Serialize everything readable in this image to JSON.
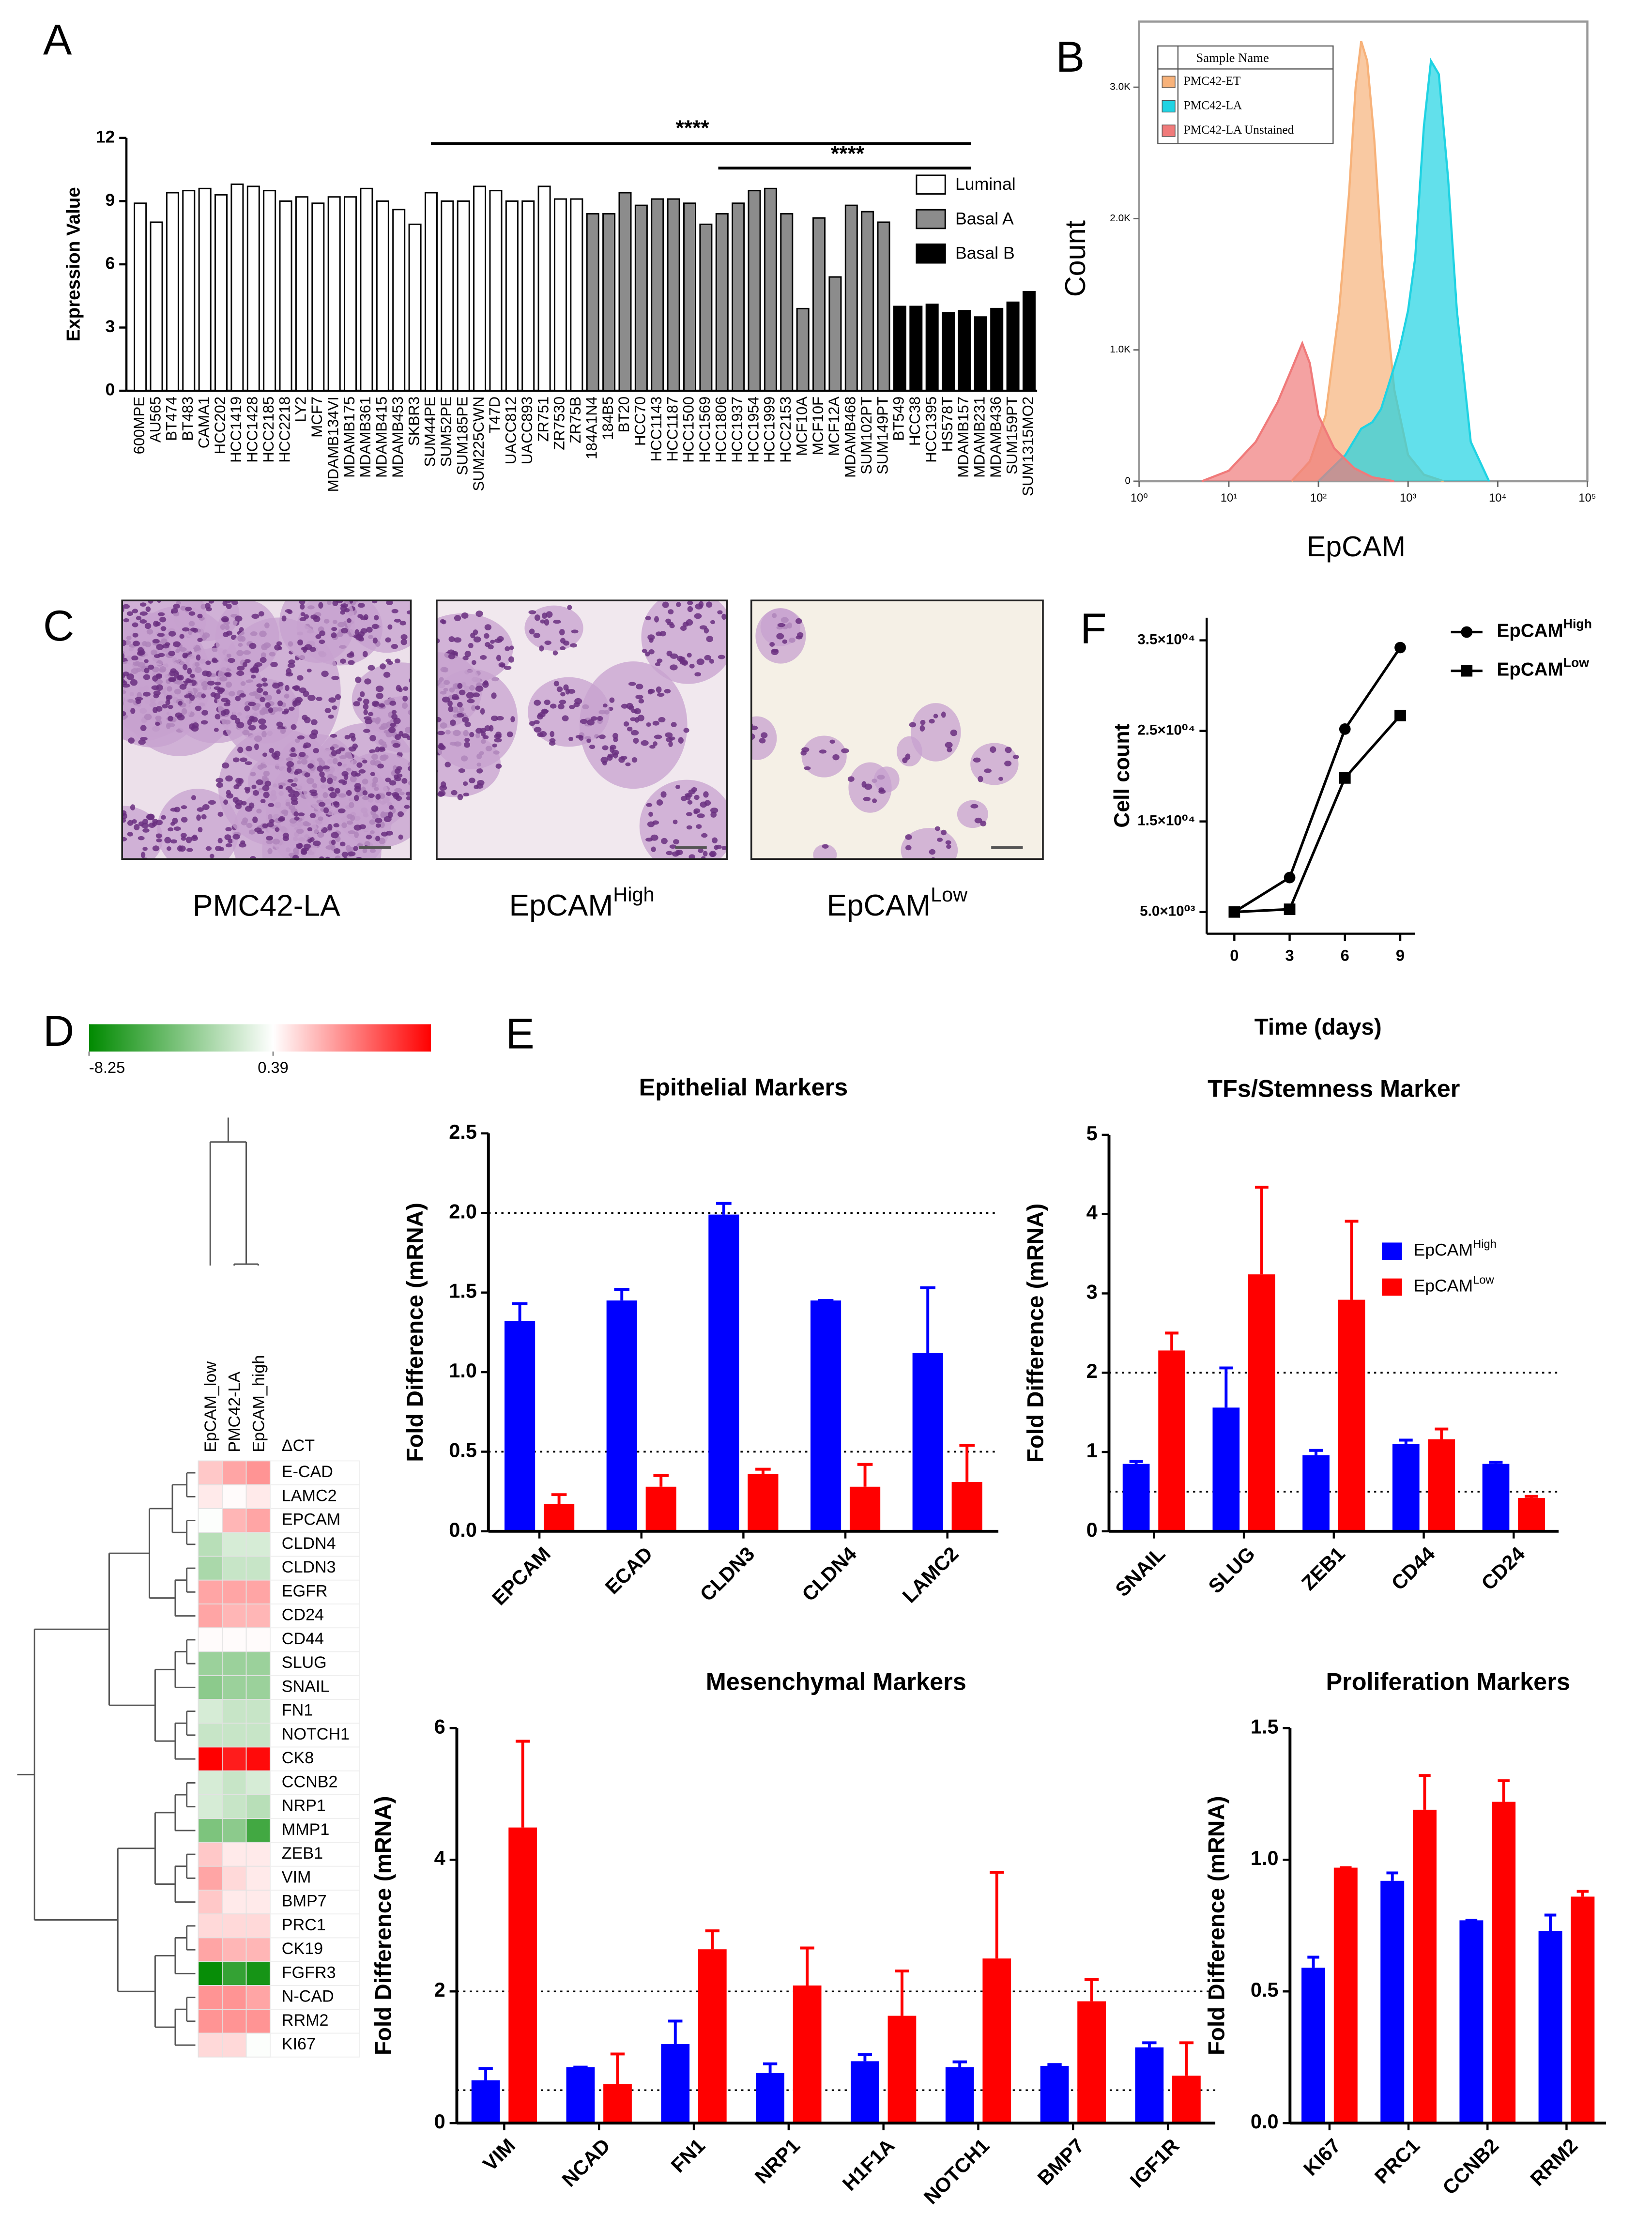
{
  "panels": [
    "A",
    "B",
    "C",
    "D",
    "E",
    "F"
  ],
  "images": {
    "captions": [
      {
        "text": "PMC42-LA"
      },
      {
        "text": "EpCAM",
        "sup": "High"
      },
      {
        "text": "EpCAM",
        "sup": "Low"
      }
    ]
  },
  "chart_data": [
    {
      "type": "bar",
      "ylabel": "Expression Value",
      "ylim": [
        0,
        12
      ],
      "yticks": [
        0,
        3,
        6,
        9,
        12
      ],
      "legend": "right",
      "annotations": [
        {
          "text": "****"
        },
        {
          "text": "****"
        }
      ],
      "series": [
        {
          "name": "Luminal",
          "color": "#ffffff",
          "categories": [
            "600MPE",
            "AU565",
            "BT474",
            "BT483",
            "CAMA1",
            "HCC202",
            "HCC1419",
            "HCC1428",
            "HCC2185",
            "HCC2218",
            "LY2",
            "MCF7",
            "MDAMB134VI",
            "MDAMB175",
            "MDAMB361",
            "MDAMB415",
            "MDAMB453",
            "SKBR3",
            "SUM44PE",
            "SUM52PE",
            "SUM185PE",
            "SUM225CWN",
            "T47D",
            "UACC812",
            "UACC893",
            "ZR751",
            "ZR7530",
            "ZR75B"
          ],
          "values": [
            8.9,
            8.0,
            9.4,
            9.5,
            9.6,
            9.3,
            9.8,
            9.7,
            9.5,
            9.0,
            9.2,
            8.9,
            9.2,
            9.2,
            9.6,
            9.0,
            8.6,
            7.9,
            9.4,
            9.0,
            9.0,
            9.7,
            9.5,
            9.0,
            9.0,
            9.7,
            9.1,
            9.1
          ]
        },
        {
          "name": "Basal A",
          "color": "#8c8c8c",
          "categories": [
            "184A1N4",
            "184B5",
            "BT20",
            "HCC70",
            "HCC1143",
            "HCC1187",
            "HCC1500",
            "HCC1569",
            "HCC1806",
            "HCC1937",
            "HCC1954",
            "HCC1999",
            "HCC2153",
            "MCF10A",
            "MCF10F",
            "MCF12A",
            "MDAMB468",
            "SUM102PT",
            "SUM149PT"
          ],
          "values": [
            8.4,
            8.4,
            9.4,
            8.8,
            9.1,
            9.1,
            8.9,
            7.9,
            8.4,
            8.9,
            9.5,
            9.6,
            8.4,
            3.9,
            8.2,
            5.4,
            8.8,
            8.5,
            8.0
          ]
        },
        {
          "name": "Basal B",
          "color": "#000000",
          "categories": [
            "BT549",
            "HCC38",
            "HCC1395",
            "HS578T",
            "MDAMB157",
            "MDAMB231",
            "MDAMB436",
            "SUM159PT",
            "SUM1315MO2"
          ],
          "values": [
            4.0,
            4.0,
            4.1,
            3.7,
            3.8,
            3.5,
            3.9,
            4.2,
            4.7
          ]
        }
      ]
    },
    {
      "type": "density",
      "xlabel": "EpCAM",
      "ylabel": "Count",
      "xscale": "log",
      "xlim": [
        1,
        100000
      ],
      "xticks": [
        {
          "value": 1,
          "label": "10⁰"
        },
        {
          "value": 10,
          "label": "10¹"
        },
        {
          "value": 100,
          "label": "10²"
        },
        {
          "value": 1000,
          "label": "10³"
        },
        {
          "value": 10000,
          "label": "10⁴"
        },
        {
          "value": 100000,
          "label": "10⁵"
        }
      ],
      "ylim": [
        0,
        3500
      ],
      "yticks": [
        0,
        {
          "value": 1000,
          "label": "1.0K"
        },
        {
          "value": 2000,
          "label": "2.0K"
        },
        {
          "value": 3000,
          "label": "3.0K"
        }
      ],
      "legend_title": "Sample Name",
      "series": [
        {
          "name": "PMC42-ET",
          "color": "#f7b27a",
          "x": [
            50,
            80,
            120,
            170,
            220,
            260,
            300,
            350,
            420,
            520,
            700,
            1000,
            1500,
            2500
          ],
          "values": [
            0,
            150,
            500,
            1300,
            2200,
            3000,
            3350,
            3200,
            2600,
            1600,
            700,
            200,
            50,
            0
          ]
        },
        {
          "name": "PMC42-LA",
          "color": "#1fd3e3",
          "x": [
            100,
            200,
            300,
            400,
            500,
            650,
            800,
            1000,
            1200,
            1500,
            1800,
            2200,
            2800,
            3500,
            5000,
            8000
          ],
          "values": [
            0,
            200,
            400,
            450,
            550,
            800,
            1000,
            1300,
            1700,
            2700,
            3200,
            3100,
            2300,
            1300,
            300,
            0
          ]
        },
        {
          "name": "PMC42-LA Unstained",
          "color": "#f07a7a",
          "x": [
            5,
            10,
            20,
            35,
            50,
            66,
            80,
            100,
            150,
            250,
            400,
            700
          ],
          "values": [
            0,
            80,
            300,
            600,
            850,
            1050,
            900,
            500,
            250,
            100,
            30,
            0
          ]
        }
      ]
    },
    {
      "type": "line",
      "xlabel": "Time (days)",
      "ylabel": "Cell count",
      "x": [
        0,
        3,
        6,
        9
      ],
      "xlim": [
        -1.5,
        9.8
      ],
      "xticks": [
        0,
        3,
        6,
        9
      ],
      "ylim": [
        2600,
        37500
      ],
      "yticks": [
        {
          "value": 5000,
          "label": "5.0×10⁰³"
        },
        {
          "value": 15000,
          "label": "1.5×10⁰⁴"
        },
        {
          "value": 25000,
          "label": "2.5×10⁰⁴"
        },
        {
          "value": 35000,
          "label": "3.5×10⁰⁴"
        }
      ],
      "legend": "right",
      "series": [
        {
          "name": "EpCAM",
          "name_sup": "High",
          "marker": "circle",
          "color": "#000000",
          "values": [
            5000,
            8800,
            25200,
            34200
          ]
        },
        {
          "name": "EpCAM",
          "name_sup": "Low",
          "marker": "square",
          "color": "#000000",
          "values": [
            5000,
            5300,
            19800,
            26700
          ]
        }
      ]
    },
    {
      "type": "heatmap",
      "zlim": [
        -8.25,
        7.8
      ],
      "zmid": 0.39,
      "colorbar_ticks": [
        -8.25,
        0.39
      ],
      "colors": [
        "#008a00",
        "#ffffff",
        "#ff0000"
      ],
      "column_header": "ΔCT",
      "columns": [
        "EpCAM_low",
        "PMC42-LA",
        "EpCAM_high"
      ],
      "rows": [
        "E-CAD",
        "LAMC2",
        "EPCAM",
        "CLDN4",
        "CLDN3",
        "EGFR",
        "CD24",
        "CD44",
        "SLUG",
        "SNAIL",
        "FN1",
        "NOTCH1",
        "CK8",
        "CCNB2",
        "NRP1",
        "MMP1",
        "ZEB1",
        "VIM",
        "BMP7",
        "PRC1",
        "CK19",
        "FGFR3",
        "N-CAD",
        "RRM2",
        "KI67"
      ],
      "values": [
        [
          2,
          3,
          3.5
        ],
        [
          1,
          0.5,
          1
        ],
        [
          0.3,
          2.5,
          3
        ],
        [
          -2,
          -1,
          -1
        ],
        [
          -2.5,
          -1.5,
          -1.5
        ],
        [
          3,
          3,
          3
        ],
        [
          3,
          2.5,
          2.5
        ],
        [
          0.5,
          0.5,
          0.5
        ],
        [
          -3,
          -3,
          -3
        ],
        [
          -3.5,
          -3,
          -3
        ],
        [
          -1,
          -1.5,
          -1.5
        ],
        [
          -1.5,
          -1.5,
          -1.5
        ],
        [
          7.8,
          7,
          7.5
        ],
        [
          -1,
          -1.5,
          -1
        ],
        [
          -1,
          -1.5,
          -2
        ],
        [
          -4,
          -3.5,
          -6
        ],
        [
          2,
          1,
          1
        ],
        [
          3,
          1.5,
          1
        ],
        [
          2,
          1,
          1
        ],
        [
          1.5,
          1.5,
          1.5
        ],
        [
          3,
          2.5,
          2.5
        ],
        [
          -8,
          -6.5,
          -7.5
        ],
        [
          3.5,
          3.5,
          3
        ],
        [
          3.5,
          3.5,
          3.5
        ],
        [
          1.5,
          1.5,
          0.3
        ]
      ]
    },
    {
      "type": "grouped_bar",
      "title": "Epithelial Markers",
      "ylabel": "Fold Difference (mRNA)",
      "categories": [
        "EPCAM",
        "ECAD",
        "CLDN3",
        "CLDN4",
        "LAMC2"
      ],
      "ylim": [
        0,
        2.5
      ],
      "yticks": [
        {
          "value": 0,
          "label": "0.0"
        },
        0.5,
        {
          "value": 1,
          "label": "1.0"
        },
        1.5,
        {
          "value": 2,
          "label": "2.0"
        },
        2.5
      ],
      "ref_lines": [
        0.5,
        2.0
      ],
      "series": [
        {
          "color": "#0000ff",
          "values": [
            1.32,
            1.45,
            1.99,
            1.45,
            1.12
          ],
          "errors": [
            0.11,
            0.07,
            0.07,
            0,
            0.41
          ]
        },
        {
          "color": "#ff0000",
          "values": [
            0.17,
            0.28,
            0.36,
            0.28,
            0.31
          ],
          "errors": [
            0.06,
            0.07,
            0.03,
            0.14,
            0.23
          ]
        }
      ]
    },
    {
      "type": "grouped_bar",
      "title": "TFs/Stemness Marker",
      "ylabel": "Fold Difference (mRNA)",
      "categories": [
        "SNAIL",
        "SLUG",
        "ZEB1",
        "CD44",
        "CD24"
      ],
      "ylim": [
        0,
        5
      ],
      "yticks": [
        0,
        1,
        2,
        3,
        4,
        5
      ],
      "ref_lines": [
        0.5,
        2
      ],
      "legend": "upper right",
      "series": [
        {
          "name": "EpCAM",
          "name_sup": "High",
          "color": "#0000ff",
          "values": [
            0.85,
            1.56,
            0.96,
            1.1,
            0.85
          ],
          "errors": [
            0.03,
            0.5,
            0.06,
            0.05,
            0.02
          ]
        },
        {
          "name": "EpCAM",
          "name_sup": "Low",
          "color": "#ff0000",
          "values": [
            2.28,
            3.24,
            2.92,
            1.16,
            0.42
          ],
          "errors": [
            0.22,
            1.1,
            0.99,
            0.13,
            0.02
          ]
        }
      ]
    },
    {
      "type": "grouped_bar",
      "title": "Mesenchymal Markers",
      "ylabel": "Fold Difference (mRNA)",
      "categories": [
        "VIM",
        "NCAD",
        "FN1",
        "NRP1",
        "H1F1A",
        "NOTCH1",
        "BMP7",
        "IGF1R"
      ],
      "ylim": [
        0,
        6
      ],
      "yticks": [
        0,
        2,
        4,
        6
      ],
      "ref_lines": [
        0.5,
        2
      ],
      "series": [
        {
          "color": "#0000ff",
          "values": [
            0.65,
            0.85,
            1.2,
            0.76,
            0.94,
            0.85,
            0.87,
            1.15
          ],
          "errors": [
            0.18,
            0,
            0.35,
            0.14,
            0.1,
            0.08,
            0.02,
            0.07
          ]
        },
        {
          "color": "#ff0000",
          "values": [
            4.49,
            0.59,
            2.64,
            2.09,
            1.63,
            2.5,
            1.85,
            0.72
          ],
          "errors": [
            1.31,
            0.46,
            0.28,
            0.57,
            0.68,
            1.31,
            0.33,
            0.5
          ]
        }
      ]
    },
    {
      "type": "grouped_bar",
      "title": "Proliferation Markers",
      "ylabel": "Fold Difference (mRNA)",
      "categories": [
        "KI67",
        "PRC1",
        "CCNB2",
        "RRM2"
      ],
      "ylim": [
        0,
        1.5
      ],
      "yticks": [
        {
          "value": 0,
          "label": "0.0"
        },
        0.5,
        {
          "value": 1,
          "label": "1.0"
        },
        1.5
      ],
      "series": [
        {
          "color": "#0000ff",
          "values": [
            0.59,
            0.92,
            0.77,
            0.73
          ],
          "errors": [
            0.04,
            0.03,
            0,
            0.06
          ]
        },
        {
          "color": "#ff0000",
          "values": [
            0.97,
            1.19,
            1.22,
            0.86
          ],
          "errors": [
            0,
            0.13,
            0.08,
            0.02
          ]
        }
      ]
    }
  ]
}
